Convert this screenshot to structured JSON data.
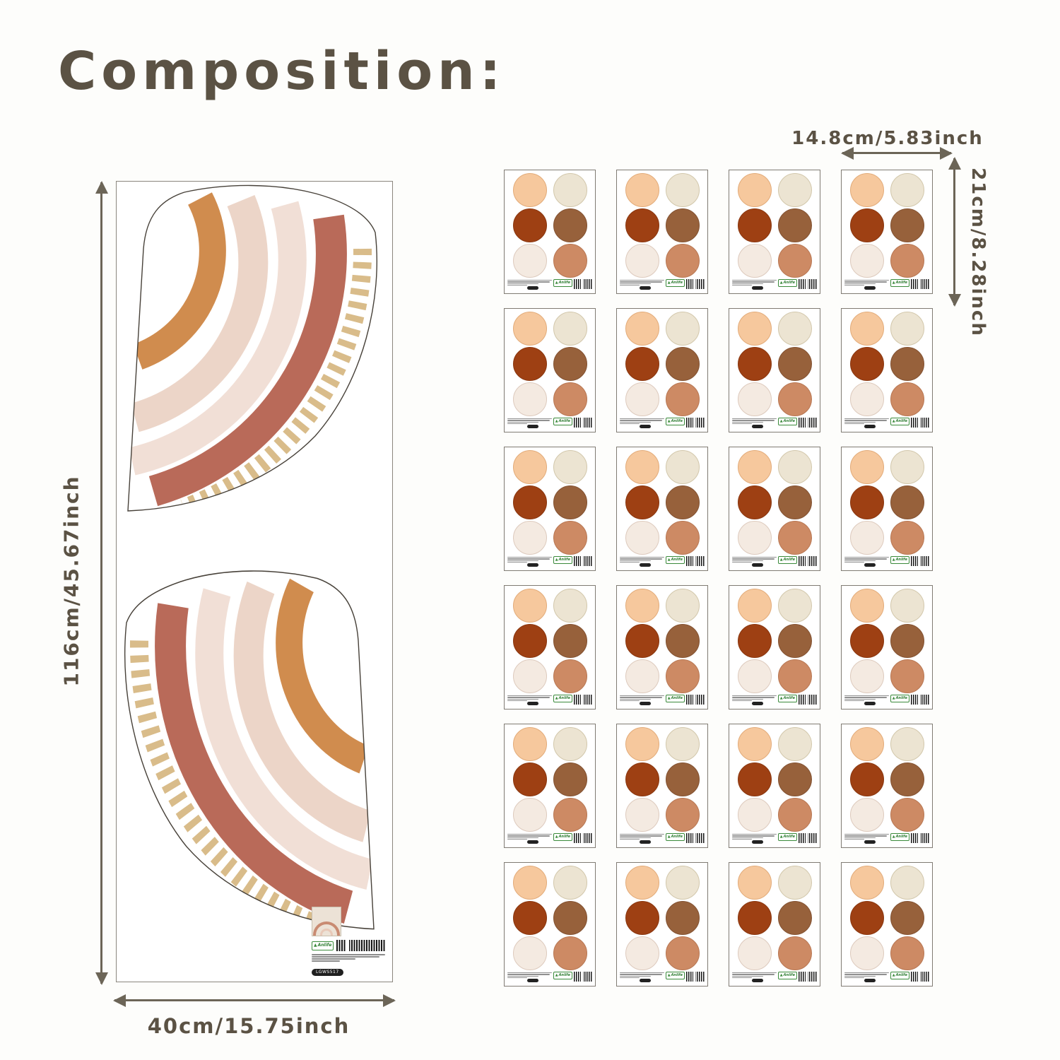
{
  "title": "Composition:",
  "large_sheet": {
    "height_label": "116cm/45.67inch",
    "width_label": "40cm/15.75inch",
    "sku": "LGWS517",
    "brand": "Anlife"
  },
  "sticker_sheet": {
    "width_label": "14.8cm/5.83inch",
    "height_label": "21cm/8.28inch",
    "brand": "Anlife",
    "circles": [
      {
        "name": "peach",
        "fill": "#f6c89d",
        "stroke": "#e2ab79"
      },
      {
        "name": "cream",
        "fill": "#ece4d2",
        "stroke": "#d2c7ab"
      },
      {
        "name": "rust",
        "fill": "#9e4013",
        "stroke": "#8a3710"
      },
      {
        "name": "brown",
        "fill": "#97613b",
        "stroke": "#835232"
      },
      {
        "name": "off-white",
        "fill": "#f4eae1",
        "stroke": "#ddcabd"
      },
      {
        "name": "terracotta",
        "fill": "#cd8a64",
        "stroke": "#b87753"
      }
    ]
  },
  "sticker_grid": {
    "rows": 6,
    "cols": 4
  },
  "colors": {
    "text": "#5b5244",
    "arrow": "#6c6557",
    "rainbow_orange": "#d08c4e",
    "rainbow_pink": "#ecd5c8",
    "rainbow_pink_light": "#f1dfd6",
    "rainbow_rust": "#b96a59",
    "rainbow_dash": "#d9bc8a",
    "logo_green": "#2e7d32"
  }
}
